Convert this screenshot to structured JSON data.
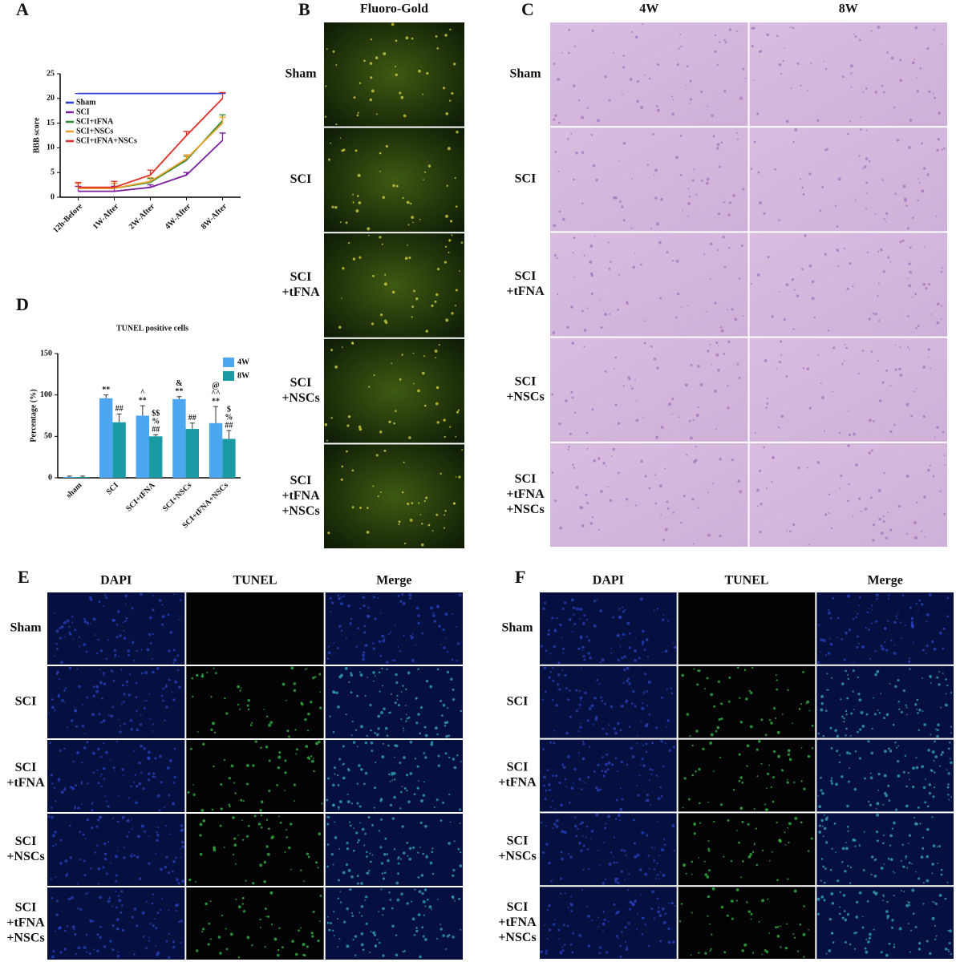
{
  "chart_data": [
    {
      "type": "line",
      "panel": "A",
      "ylabel": "BBB score",
      "categories": [
        "12h-Before",
        "1W-After",
        "2W-After",
        "4W-After",
        "8W-After"
      ],
      "series": [
        {
          "name": "Sham",
          "color": "#2b3fd6",
          "values": [
            21,
            21,
            21,
            21,
            21
          ],
          "errors": [
            0,
            0,
            0,
            0,
            0
          ]
        },
        {
          "name": "SCI",
          "color": "#7a1fa0",
          "values": [
            1.2,
            1.2,
            2,
            4.5,
            11.5
          ],
          "errors": [
            1,
            1,
            0.5,
            0.5,
            1.5
          ]
        },
        {
          "name": "SCI+tFNA",
          "color": "#2e8b2e",
          "values": [
            1.8,
            1.8,
            3,
            7.5,
            15.5
          ],
          "errors": [
            1,
            1,
            0.8,
            0.8,
            1.2
          ]
        },
        {
          "name": "SCI+NSCs",
          "color": "#f0a030",
          "values": [
            1.8,
            1.8,
            3.2,
            7.8,
            15
          ],
          "errors": [
            1,
            1,
            0.8,
            0.8,
            1.2
          ]
        },
        {
          "name": "SCI+tFNA+NSCs",
          "color": "#e0302a",
          "values": [
            2,
            2,
            4.5,
            12.5,
            20
          ],
          "errors": [
            1,
            1.2,
            1,
            0.8,
            1.2
          ]
        }
      ],
      "ylim": [
        0,
        25
      ],
      "yticks": [
        0,
        5,
        10,
        15,
        20,
        25
      ],
      "legend": "upper left"
    },
    {
      "type": "bar",
      "panel": "D",
      "title": "TUNEL positive cells",
      "ylabel": "Percentage (%)",
      "categories": [
        "sham",
        "SCI",
        "SCI+tFNA",
        "SCI+NSCs",
        "SCI+tFNA+NSCs"
      ],
      "series": [
        {
          "name": "4W",
          "color": "#4da6f0",
          "values": [
            1,
            96,
            75,
            95,
            66
          ],
          "errors": [
            1,
            4,
            12,
            3,
            20
          ],
          "marks": [
            null,
            [
              "**"
            ],
            [
              "^",
              "**"
            ],
            [
              "&",
              "**"
            ],
            [
              "@",
              "^^",
              "**"
            ]
          ]
        },
        {
          "name": "8W",
          "color": "#1a9ba3",
          "values": [
            1,
            67,
            50,
            59,
            47
          ],
          "errors": [
            1,
            10,
            2,
            7,
            10
          ],
          "marks": [
            null,
            [
              "##"
            ],
            [
              "$$",
              "%",
              "##"
            ],
            [
              "##"
            ],
            [
              "$",
              "%",
              "##"
            ]
          ]
        }
      ],
      "ylim": [
        0,
        150
      ],
      "yticks": [
        0,
        50,
        100,
        150
      ],
      "legend": "upper right"
    }
  ],
  "panels": {
    "B": {
      "label": "B",
      "columns": [
        "Fluoro-Gold"
      ],
      "rows": [
        [
          "Sham"
        ],
        [
          "SCI"
        ],
        [
          "SCI",
          "+tFNA"
        ],
        [
          "SCI",
          "+NSCs"
        ],
        [
          "SCI",
          "+tFNA",
          "+NSCs"
        ]
      ]
    },
    "C": {
      "label": "C",
      "columns": [
        "4W",
        "8W"
      ],
      "rows": [
        [
          "Sham"
        ],
        [
          "SCI"
        ],
        [
          "SCI",
          "+tFNA"
        ],
        [
          "SCI",
          "+NSCs"
        ],
        [
          "SCI",
          "+tFNA",
          "+NSCs"
        ]
      ]
    },
    "E": {
      "label": "E",
      "columns": [
        "DAPI",
        "TUNEL",
        "Merge"
      ],
      "rows": [
        [
          "Sham"
        ],
        [
          "SCI"
        ],
        [
          "SCI",
          "+tFNA"
        ],
        [
          "SCI",
          "+NSCs"
        ],
        [
          "SCI",
          "+tFNA",
          "+NSCs"
        ]
      ]
    },
    "F": {
      "label": "F",
      "columns": [
        "DAPI",
        "TUNEL",
        "Merge"
      ],
      "rows": [
        [
          "Sham"
        ],
        [
          "SCI"
        ],
        [
          "SCI",
          "+tFNA"
        ],
        [
          "SCI",
          "+NSCs"
        ],
        [
          "SCI",
          "+tFNA",
          "+NSCs"
        ]
      ]
    }
  }
}
